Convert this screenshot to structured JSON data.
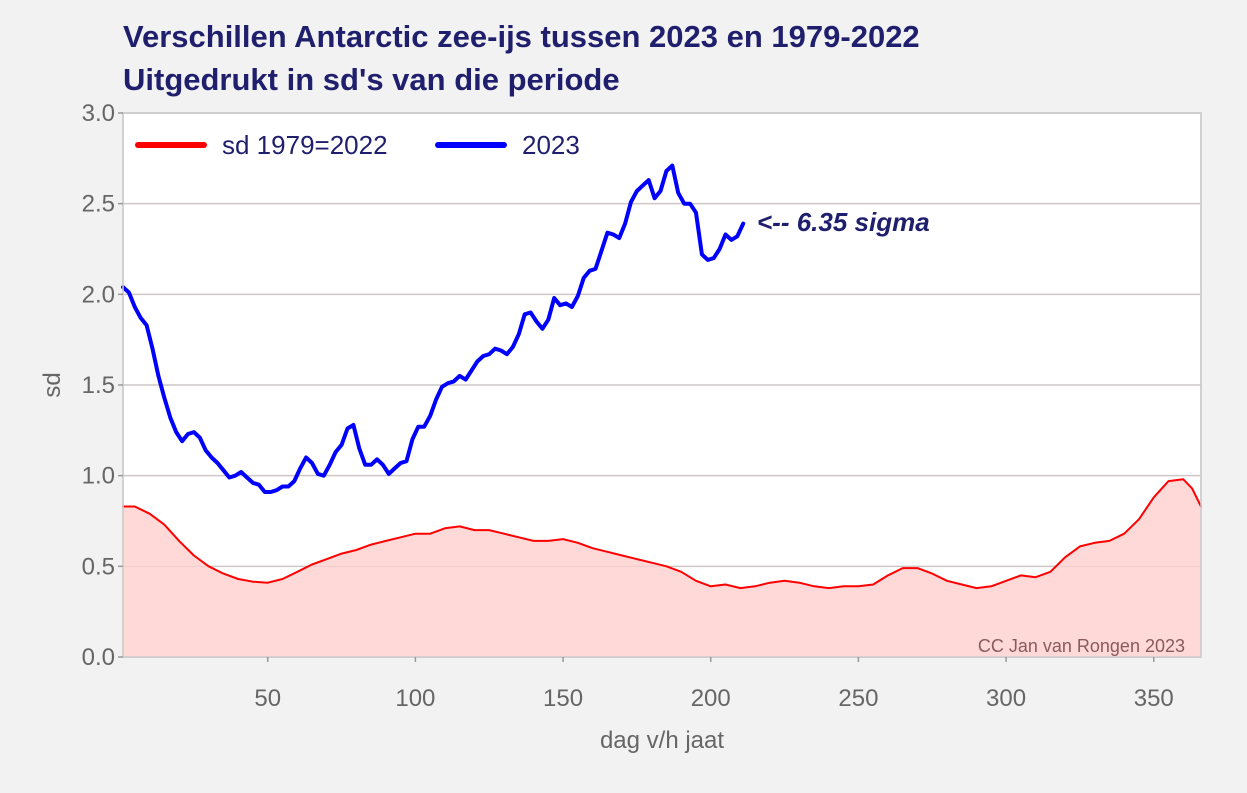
{
  "chart_data": {
    "type": "line",
    "title": "Verschillen Antarctic zee-ijs tussen 2023 en 1979-2022",
    "subtitle": "Uitgedrukt in sd's van die periode",
    "xlabel": "dag v/h jaat",
    "ylabel": "sd",
    "xlim": [
      1,
      366
    ],
    "ylim": [
      0,
      3
    ],
    "x_ticks": [
      50,
      100,
      150,
      200,
      250,
      300,
      350
    ],
    "y_ticks": [
      "0.0",
      "0.5",
      "1.0",
      "1.5",
      "2.0",
      "2.5",
      "3.0"
    ],
    "grid": "horizontal",
    "legend_position": "top-left",
    "annotation": {
      "text": "<-- 6.35 sigma",
      "x": 213,
      "y": 2.4
    },
    "credit": "CC Jan van Rongen 2023",
    "series": [
      {
        "name": "sd 1979=2022",
        "color": "#ff0000",
        "fill": "#ffd8d8",
        "points": [
          [
            1,
            0.83
          ],
          [
            5,
            0.83
          ],
          [
            10,
            0.79
          ],
          [
            15,
            0.73
          ],
          [
            20,
            0.64
          ],
          [
            25,
            0.56
          ],
          [
            30,
            0.5
          ],
          [
            35,
            0.46
          ],
          [
            40,
            0.43
          ],
          [
            45,
            0.415
          ],
          [
            50,
            0.41
          ],
          [
            55,
            0.43
          ],
          [
            60,
            0.47
          ],
          [
            65,
            0.51
          ],
          [
            70,
            0.54
          ],
          [
            75,
            0.57
          ],
          [
            80,
            0.59
          ],
          [
            85,
            0.62
          ],
          [
            90,
            0.64
          ],
          [
            95,
            0.66
          ],
          [
            100,
            0.68
          ],
          [
            105,
            0.68
          ],
          [
            110,
            0.71
          ],
          [
            115,
            0.72
          ],
          [
            120,
            0.7
          ],
          [
            125,
            0.7
          ],
          [
            130,
            0.68
          ],
          [
            135,
            0.66
          ],
          [
            140,
            0.64
          ],
          [
            145,
            0.64
          ],
          [
            150,
            0.65
          ],
          [
            155,
            0.63
          ],
          [
            160,
            0.6
          ],
          [
            165,
            0.58
          ],
          [
            170,
            0.56
          ],
          [
            175,
            0.54
          ],
          [
            180,
            0.52
          ],
          [
            185,
            0.5
          ],
          [
            190,
            0.47
          ],
          [
            195,
            0.42
          ],
          [
            200,
            0.39
          ],
          [
            205,
            0.4
          ],
          [
            210,
            0.38
          ],
          [
            215,
            0.39
          ],
          [
            220,
            0.41
          ],
          [
            225,
            0.42
          ],
          [
            230,
            0.41
          ],
          [
            235,
            0.39
          ],
          [
            240,
            0.38
          ],
          [
            245,
            0.39
          ],
          [
            250,
            0.39
          ],
          [
            255,
            0.4
          ],
          [
            260,
            0.45
          ],
          [
            265,
            0.49
          ],
          [
            270,
            0.49
          ],
          [
            275,
            0.46
          ],
          [
            280,
            0.42
          ],
          [
            285,
            0.4
          ],
          [
            290,
            0.38
          ],
          [
            295,
            0.39
          ],
          [
            300,
            0.42
          ],
          [
            305,
            0.45
          ],
          [
            310,
            0.44
          ],
          [
            315,
            0.47
          ],
          [
            320,
            0.55
          ],
          [
            325,
            0.61
          ],
          [
            330,
            0.63
          ],
          [
            335,
            0.64
          ],
          [
            340,
            0.68
          ],
          [
            345,
            0.76
          ],
          [
            350,
            0.88
          ],
          [
            355,
            0.97
          ],
          [
            360,
            0.98
          ],
          [
            363,
            0.93
          ],
          [
            366,
            0.83
          ]
        ]
      },
      {
        "name": "2023",
        "color": "#0000ff",
        "points": [
          [
            1,
            2.04
          ],
          [
            3,
            2.01
          ],
          [
            5,
            1.93
          ],
          [
            7,
            1.87
          ],
          [
            9,
            1.83
          ],
          [
            11,
            1.7
          ],
          [
            13,
            1.55
          ],
          [
            15,
            1.43
          ],
          [
            17,
            1.32
          ],
          [
            19,
            1.24
          ],
          [
            21,
            1.19
          ],
          [
            23,
            1.23
          ],
          [
            25,
            1.24
          ],
          [
            27,
            1.21
          ],
          [
            29,
            1.14
          ],
          [
            31,
            1.1
          ],
          [
            33,
            1.07
          ],
          [
            35,
            1.03
          ],
          [
            37,
            0.99
          ],
          [
            39,
            1.0
          ],
          [
            41,
            1.02
          ],
          [
            43,
            0.99
          ],
          [
            45,
            0.96
          ],
          [
            47,
            0.95
          ],
          [
            49,
            0.91
          ],
          [
            51,
            0.91
          ],
          [
            53,
            0.92
          ],
          [
            55,
            0.94
          ],
          [
            57,
            0.94
          ],
          [
            59,
            0.97
          ],
          [
            61,
            1.04
          ],
          [
            63,
            1.1
          ],
          [
            65,
            1.07
          ],
          [
            67,
            1.01
          ],
          [
            69,
            1.0
          ],
          [
            71,
            1.06
          ],
          [
            73,
            1.13
          ],
          [
            75,
            1.17
          ],
          [
            77,
            1.26
          ],
          [
            79,
            1.28
          ],
          [
            81,
            1.15
          ],
          [
            83,
            1.06
          ],
          [
            85,
            1.06
          ],
          [
            87,
            1.09
          ],
          [
            89,
            1.06
          ],
          [
            91,
            1.01
          ],
          [
            93,
            1.04
          ],
          [
            95,
            1.07
          ],
          [
            97,
            1.08
          ],
          [
            99,
            1.2
          ],
          [
            101,
            1.27
          ],
          [
            103,
            1.27
          ],
          [
            105,
            1.33
          ],
          [
            107,
            1.42
          ],
          [
            109,
            1.49
          ],
          [
            111,
            1.51
          ],
          [
            113,
            1.52
          ],
          [
            115,
            1.55
          ],
          [
            117,
            1.53
          ],
          [
            119,
            1.58
          ],
          [
            121,
            1.63
          ],
          [
            123,
            1.66
          ],
          [
            125,
            1.67
          ],
          [
            127,
            1.7
          ],
          [
            129,
            1.69
          ],
          [
            131,
            1.67
          ],
          [
            133,
            1.71
          ],
          [
            135,
            1.78
          ],
          [
            137,
            1.89
          ],
          [
            139,
            1.9
          ],
          [
            141,
            1.85
          ],
          [
            143,
            1.81
          ],
          [
            145,
            1.86
          ],
          [
            147,
            1.98
          ],
          [
            149,
            1.94
          ],
          [
            151,
            1.95
          ],
          [
            153,
            1.93
          ],
          [
            155,
            1.99
          ],
          [
            157,
            2.09
          ],
          [
            159,
            2.13
          ],
          [
            161,
            2.14
          ],
          [
            163,
            2.24
          ],
          [
            165,
            2.34
          ],
          [
            167,
            2.33
          ],
          [
            169,
            2.31
          ],
          [
            171,
            2.39
          ],
          [
            173,
            2.51
          ],
          [
            175,
            2.57
          ],
          [
            177,
            2.6
          ],
          [
            179,
            2.63
          ],
          [
            181,
            2.53
          ],
          [
            183,
            2.57
          ],
          [
            185,
            2.68
          ],
          [
            187,
            2.71
          ],
          [
            189,
            2.56
          ],
          [
            191,
            2.5
          ],
          [
            193,
            2.5
          ],
          [
            195,
            2.45
          ],
          [
            197,
            2.22
          ],
          [
            199,
            2.19
          ],
          [
            201,
            2.2
          ],
          [
            203,
            2.25
          ],
          [
            205,
            2.33
          ],
          [
            207,
            2.3
          ],
          [
            209,
            2.32
          ],
          [
            211,
            2.39
          ]
        ]
      }
    ]
  }
}
